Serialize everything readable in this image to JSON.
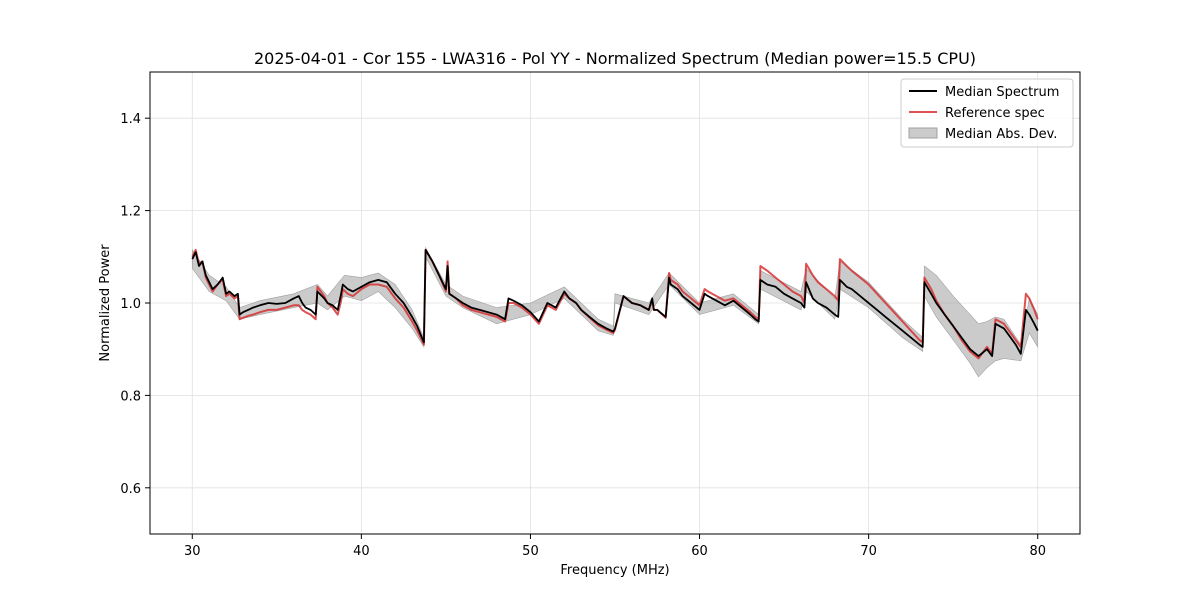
{
  "chart_data": {
    "type": "line",
    "title": "2025-04-01 - Cor 155 - LWA316 - Pol YY - Normalized Spectrum (Median power=15.5 CPU)",
    "xlabel": "Frequency (MHz)",
    "ylabel": "Normalized Power",
    "xlim": [
      27.5,
      82.5
    ],
    "ylim": [
      0.5,
      1.5
    ],
    "xticks": [
      30,
      40,
      50,
      60,
      70,
      80
    ],
    "yticks": [
      0.6,
      0.8,
      1.0,
      1.2,
      1.4
    ],
    "xtick_labels": [
      "30",
      "40",
      "50",
      "60",
      "70",
      "80"
    ],
    "ytick_labels": [
      "0.6",
      "0.8",
      "1.0",
      "1.2",
      "1.4"
    ],
    "grid": true,
    "legend_position": "top-right",
    "legend": [
      "Median Spectrum",
      "Reference spec",
      "Median Abs. Dev."
    ],
    "colors": {
      "median": "#000000",
      "reference": "#d62728",
      "mad_fill": "#a0a0a0"
    },
    "series": [
      {
        "name": "Median Spectrum",
        "x": [
          30.0,
          30.2,
          30.4,
          30.6,
          30.8,
          31.0,
          31.2,
          31.5,
          31.8,
          32.0,
          32.2,
          32.5,
          32.7,
          32.8,
          33.0,
          33.3,
          33.6,
          34.0,
          34.5,
          35.0,
          35.5,
          36.0,
          36.3,
          36.5,
          36.7,
          37.0,
          37.3,
          37.4,
          37.8,
          38.0,
          38.3,
          38.6,
          38.8,
          38.9,
          39.2,
          39.5,
          40.0,
          40.5,
          41.0,
          41.5,
          42.0,
          42.5,
          43.0,
          43.3,
          43.7,
          43.8,
          44.2,
          44.6,
          45.0,
          45.1,
          45.2,
          45.6,
          46.0,
          46.5,
          47.0,
          47.5,
          48.0,
          48.5,
          48.7,
          49.0,
          49.5,
          50.0,
          50.5,
          51.0,
          51.5,
          52.0,
          52.3,
          52.7,
          53.0,
          53.5,
          54.0,
          54.5,
          54.9,
          55.0,
          55.5,
          56.0,
          56.5,
          57.0,
          57.2,
          57.3,
          57.5,
          58.0,
          58.2,
          58.3,
          58.7,
          59.0,
          59.5,
          60.0,
          60.3,
          60.5,
          61.0,
          61.5,
          62.0,
          62.5,
          63.0,
          63.3,
          63.5,
          63.6,
          64.0,
          64.5,
          65.0,
          65.5,
          66.0,
          66.2,
          66.3,
          66.7,
          67.0,
          67.5,
          68.0,
          68.2,
          68.3,
          68.7,
          69.0,
          69.5,
          70.0,
          70.5,
          71.0,
          71.5,
          72.0,
          72.5,
          73.0,
          73.2,
          73.3,
          73.7,
          74.0,
          74.5,
          75.0,
          75.5,
          76.0,
          76.5,
          77.0,
          77.3,
          77.5,
          78.0,
          78.3,
          78.7,
          79.0,
          79.3,
          79.5,
          79.8,
          80.0
        ],
        "y": [
          1.095,
          1.11,
          1.08,
          1.09,
          1.06,
          1.045,
          1.03,
          1.04,
          1.055,
          1.02,
          1.025,
          1.015,
          1.02,
          0.975,
          0.98,
          0.985,
          0.99,
          0.995,
          1.0,
          0.998,
          1.0,
          1.01,
          1.015,
          1.0,
          0.99,
          0.985,
          0.975,
          1.025,
          1.01,
          1.0,
          0.995,
          0.985,
          1.02,
          1.04,
          1.03,
          1.025,
          1.035,
          1.045,
          1.05,
          1.045,
          1.02,
          1.0,
          0.97,
          0.95,
          0.915,
          1.115,
          1.09,
          1.06,
          1.03,
          1.08,
          1.02,
          1.01,
          1.0,
          0.99,
          0.985,
          0.98,
          0.975,
          0.965,
          1.01,
          1.005,
          0.995,
          0.98,
          0.96,
          1.0,
          0.99,
          1.025,
          1.01,
          1.0,
          0.985,
          0.97,
          0.955,
          0.945,
          0.938,
          0.945,
          1.015,
          1.0,
          0.995,
          0.985,
          1.01,
          0.985,
          0.985,
          0.97,
          1.055,
          1.04,
          1.03,
          1.015,
          1.0,
          0.985,
          1.02,
          1.015,
          1.005,
          0.995,
          1.005,
          0.99,
          0.975,
          0.965,
          0.96,
          1.05,
          1.04,
          1.035,
          1.02,
          1.01,
          1.0,
          0.99,
          1.045,
          1.01,
          1.0,
          0.99,
          0.975,
          0.97,
          1.05,
          1.035,
          1.03,
          1.015,
          1.0,
          0.985,
          0.97,
          0.955,
          0.94,
          0.925,
          0.91,
          0.905,
          1.045,
          1.02,
          1.0,
          0.975,
          0.95,
          0.925,
          0.9,
          0.885,
          0.9,
          0.885,
          0.955,
          0.945,
          0.93,
          0.91,
          0.89,
          0.985,
          0.975,
          0.955,
          0.94
        ]
      },
      {
        "name": "Reference spec",
        "x": [
          30.0,
          30.2,
          30.4,
          30.6,
          30.8,
          31.0,
          31.2,
          31.5,
          31.8,
          32.0,
          32.2,
          32.5,
          32.7,
          32.8,
          33.0,
          33.3,
          33.6,
          34.0,
          34.5,
          35.0,
          35.5,
          36.0,
          36.3,
          36.5,
          36.7,
          37.0,
          37.3,
          37.4,
          37.8,
          38.0,
          38.3,
          38.6,
          38.8,
          38.9,
          39.2,
          39.5,
          40.0,
          40.5,
          41.0,
          41.5,
          42.0,
          42.5,
          43.0,
          43.3,
          43.7,
          43.8,
          44.2,
          44.6,
          45.0,
          45.1,
          45.2,
          45.6,
          46.0,
          46.5,
          47.0,
          47.5,
          48.0,
          48.5,
          48.7,
          49.0,
          49.5,
          50.0,
          50.5,
          51.0,
          51.5,
          52.0,
          52.3,
          52.7,
          53.0,
          53.5,
          54.0,
          54.5,
          54.9,
          55.0,
          55.5,
          56.0,
          56.5,
          57.0,
          57.2,
          57.3,
          57.5,
          58.0,
          58.2,
          58.3,
          58.7,
          59.0,
          59.5,
          60.0,
          60.3,
          60.5,
          61.0,
          61.5,
          62.0,
          62.5,
          63.0,
          63.3,
          63.5,
          63.6,
          64.0,
          64.5,
          65.0,
          65.5,
          66.0,
          66.2,
          66.3,
          66.7,
          67.0,
          67.5,
          68.0,
          68.2,
          68.3,
          68.7,
          69.0,
          69.5,
          70.0,
          70.5,
          71.0,
          71.5,
          72.0,
          72.5,
          73.0,
          73.2,
          73.3,
          73.7,
          74.0,
          74.5,
          75.0,
          75.5,
          76.0,
          76.5,
          77.0,
          77.3,
          77.5,
          78.0,
          78.3,
          78.7,
          79.0,
          79.3,
          79.5,
          79.8,
          80.0
        ],
        "y": [
          1.1,
          1.115,
          1.085,
          1.09,
          1.055,
          1.04,
          1.025,
          1.04,
          1.05,
          1.015,
          1.02,
          1.01,
          1.015,
          0.965,
          0.968,
          0.972,
          0.975,
          0.98,
          0.985,
          0.985,
          0.99,
          0.995,
          0.995,
          0.985,
          0.98,
          0.975,
          0.965,
          1.035,
          1.015,
          1.0,
          0.99,
          0.975,
          1.005,
          1.03,
          1.02,
          1.015,
          1.03,
          1.04,
          1.04,
          1.035,
          1.01,
          0.99,
          0.96,
          0.94,
          0.91,
          1.115,
          1.09,
          1.06,
          1.025,
          1.09,
          1.02,
          1.01,
          0.995,
          0.985,
          0.98,
          0.975,
          0.97,
          0.96,
          1.0,
          1.0,
          0.99,
          0.975,
          0.955,
          0.995,
          0.985,
          1.02,
          1.01,
          1.0,
          0.985,
          0.968,
          0.952,
          0.942,
          0.935,
          0.942,
          1.015,
          1.0,
          0.995,
          0.985,
          1.005,
          0.985,
          0.985,
          0.968,
          1.065,
          1.05,
          1.04,
          1.025,
          1.01,
          0.995,
          1.03,
          1.025,
          1.015,
          1.005,
          1.01,
          0.995,
          0.98,
          0.97,
          0.965,
          1.08,
          1.07,
          1.055,
          1.04,
          1.025,
          1.015,
          1.0,
          1.085,
          1.06,
          1.045,
          1.03,
          1.015,
          1.005,
          1.095,
          1.08,
          1.07,
          1.055,
          1.04,
          1.02,
          1.0,
          0.98,
          0.96,
          0.94,
          0.92,
          0.915,
          1.055,
          1.03,
          1.005,
          0.975,
          0.95,
          0.92,
          0.895,
          0.88,
          0.905,
          0.89,
          0.965,
          0.955,
          0.94,
          0.92,
          0.905,
          1.02,
          1.01,
          0.985,
          0.965
        ]
      },
      {
        "name": "Median Abs. Dev.",
        "x": [
          30.0,
          31.0,
          32.0,
          32.8,
          34.0,
          36.0,
          37.4,
          38.0,
          39.0,
          40.0,
          41.0,
          42.0,
          43.0,
          43.7,
          43.8,
          45.0,
          46.0,
          48.0,
          50.0,
          52.0,
          54.0,
          54.9,
          55.0,
          57.0,
          58.2,
          60.0,
          62.0,
          63.5,
          63.6,
          66.0,
          66.3,
          68.0,
          68.3,
          70.0,
          72.0,
          73.2,
          73.3,
          74.0,
          75.0,
          76.0,
          76.5,
          77.0,
          77.5,
          78.0,
          79.0,
          79.5,
          80.0
        ],
        "upper": [
          1.115,
          1.06,
          1.035,
          0.99,
          1.005,
          1.02,
          1.04,
          1.015,
          1.06,
          1.055,
          1.065,
          1.04,
          0.985,
          0.925,
          1.12,
          1.04,
          1.015,
          0.99,
          1.0,
          1.035,
          0.965,
          0.95,
          1.02,
          1.0,
          1.065,
          1.0,
          1.02,
          0.975,
          1.07,
          1.025,
          1.075,
          1.01,
          1.09,
          1.045,
          0.965,
          0.925,
          1.08,
          1.06,
          1.015,
          0.975,
          0.955,
          0.96,
          0.97,
          0.965,
          0.91,
          1.01,
          0.975
        ],
        "lower": [
          1.075,
          1.025,
          1.005,
          0.965,
          0.975,
          0.99,
          1.0,
          0.985,
          1.015,
          1.005,
          1.025,
          0.99,
          0.945,
          0.905,
          1.1,
          1.015,
          0.99,
          0.955,
          0.975,
          1.01,
          0.94,
          0.93,
          1.0,
          0.975,
          1.04,
          0.975,
          0.995,
          0.955,
          1.03,
          0.985,
          1.025,
          0.965,
          1.03,
          0.99,
          0.925,
          0.895,
          1.015,
          0.97,
          0.92,
          0.87,
          0.84,
          0.86,
          0.875,
          0.88,
          0.875,
          0.935,
          0.905
        ]
      }
    ]
  }
}
